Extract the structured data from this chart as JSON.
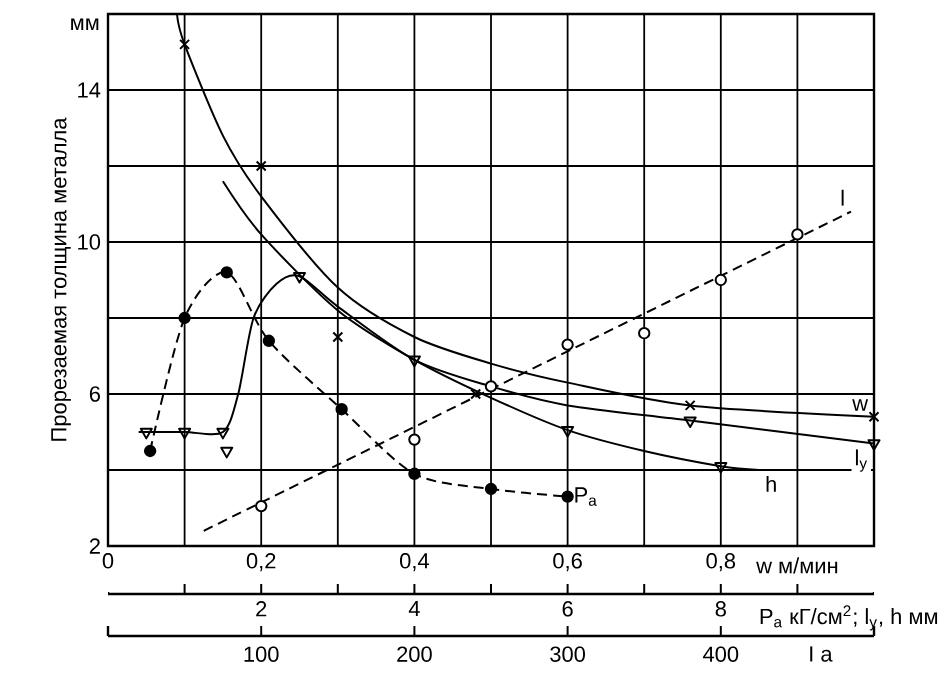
{
  "chart_data": {
    "type": "line",
    "xlabel": "w м/мин",
    "ylabel": "Прорезаемая толщина металла",
    "annotations": [
      "мм",
      "100",
      "200",
      "300",
      "400",
      "I a"
    ],
    "xlim": [
      0,
      1.0
    ],
    "ylim": [
      2,
      16
    ],
    "grid": true,
    "xticks": [
      {
        "value": 0,
        "label": "0"
      },
      {
        "value": 0.1,
        "label": null
      },
      {
        "value": 0.2,
        "label": "0,2"
      },
      {
        "value": 0.3,
        "label": null
      },
      {
        "value": 0.4,
        "label": "0,4"
      },
      {
        "value": 0.5,
        "label": null
      },
      {
        "value": 0.6,
        "label": "0,6"
      },
      {
        "value": 0.7,
        "label": null
      },
      {
        "value": 0.8,
        "label": "0,8"
      },
      {
        "value": 0.9,
        "label": null
      }
    ],
    "yticks": [
      2,
      {
        "value": 4,
        "label": null
      },
      6,
      {
        "value": 8,
        "label": null
      },
      10,
      {
        "value": 12,
        "label": null
      },
      14
    ],
    "x2label": "P$_{a}$ кГ/см$^{2}$; l$_{y}$, h мм",
    "x2lim": [
      0,
      10
    ],
    "x2ticks": [
      {
        "value": 1,
        "label": null
      },
      2,
      {
        "value": 3,
        "label": null
      },
      4,
      {
        "value": 5,
        "label": null
      },
      6,
      {
        "value": 7,
        "label": null
      },
      8,
      {
        "value": 9,
        "label": null
      }
    ],
    "series": [
      {
        "name": "w",
        "color": "#000000",
        "marker": "none",
        "line_style": "solid",
        "x": [
          0.09,
          0.1,
          0.15,
          0.2,
          0.3,
          0.4,
          0.5,
          0.6,
          0.76,
          1.0
        ],
        "values": [
          16,
          15.2,
          12.8,
          11.2,
          8.8,
          7.5,
          6.8,
          6.3,
          5.7,
          5.4
        ]
      },
      {
        "type": "scatter",
        "color": "#000000",
        "marker": "cross",
        "x": [
          0.1,
          0.2,
          0.3,
          0.48,
          0.76,
          1.0
        ],
        "values": [
          15.2,
          12,
          7.5,
          6.0,
          5.7,
          5.4
        ]
      },
      {
        "name": "h",
        "color": "#000000",
        "marker": "none",
        "line_style": "solid",
        "x": [
          0.15,
          0.2,
          0.3,
          0.4,
          0.5,
          0.6,
          0.7,
          0.8,
          0.85
        ],
        "values": [
          11.6,
          10.2,
          8.2,
          6.9,
          5.9,
          5.05,
          4.5,
          4.1,
          4.0
        ]
      },
      {
        "name": "l$_{y}$",
        "color": "#000000",
        "marker": "none",
        "line_style": "solid",
        "x": [
          0.04,
          0.1,
          0.15,
          0.17,
          0.19,
          0.22,
          0.25,
          0.3,
          0.4,
          0.5,
          0.6,
          0.76,
          1.0
        ],
        "values": [
          5.0,
          5.0,
          5.0,
          6.0,
          8.0,
          8.9,
          9.1,
          8.3,
          6.9,
          6.2,
          5.7,
          5.3,
          4.7
        ]
      },
      {
        "type": "scatter",
        "color": "#000000",
        "marker": "triangle",
        "x": [
          0.05,
          0.1,
          0.15,
          0.155,
          0.25,
          0.4,
          0.6,
          0.76,
          0.8,
          1.0
        ],
        "values": [
          5.0,
          5.0,
          5.0,
          4.5,
          9.1,
          6.9,
          5.05,
          5.3,
          4.1,
          4.7
        ]
      },
      {
        "name": "P$_{a}$",
        "color": "#000000",
        "marker": "circle",
        "line_style": "dashed",
        "x": [
          0.055,
          0.1,
          0.155,
          0.21,
          0.305,
          0.4,
          0.5,
          0.6
        ],
        "values": [
          4.5,
          8.0,
          9.2,
          7.4,
          5.6,
          3.9,
          3.5,
          3.3
        ]
      },
      {
        "name": "l",
        "color": "#000000",
        "marker": "none",
        "line_style": "dashed",
        "x": [
          0.125,
          0.97
        ],
        "values": [
          2.4,
          10.8
        ]
      },
      {
        "type": "scatter",
        "color": "#000000",
        "marker": "circle",
        "x": [
          0.2,
          0.4,
          0.5,
          0.6,
          0.7,
          0.8,
          0.9
        ],
        "values": [
          3.05,
          4.8,
          6.2,
          7.3,
          7.6,
          9.0,
          10.2
        ]
      }
    ]
  }
}
